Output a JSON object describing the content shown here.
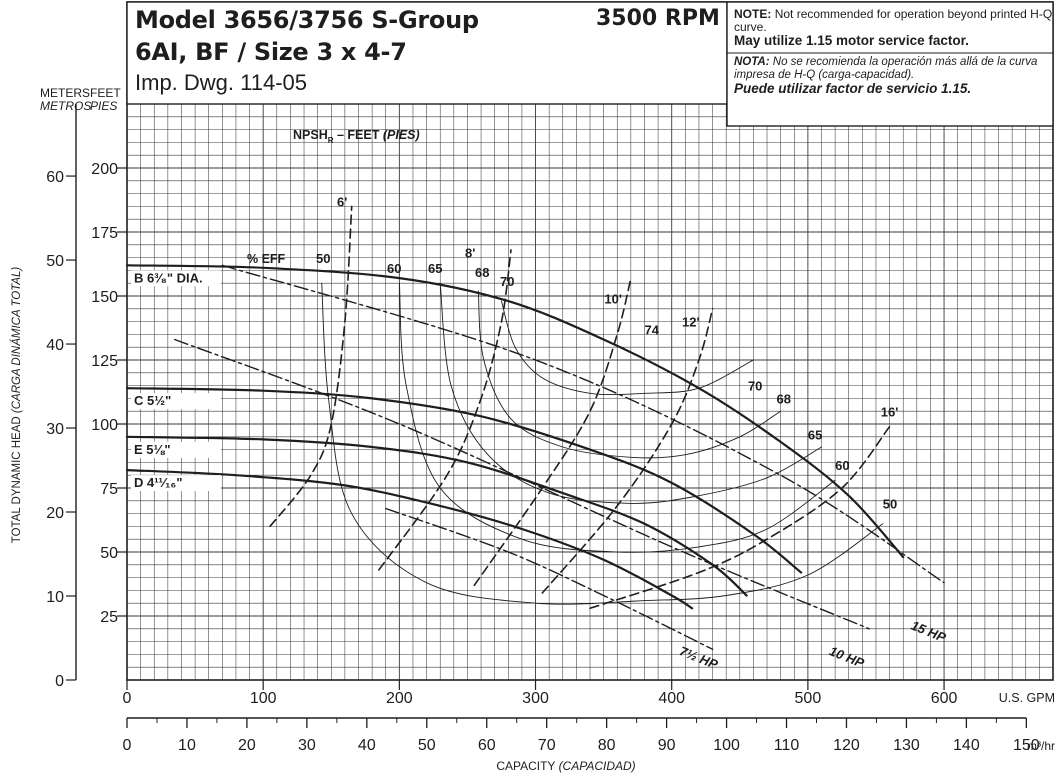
{
  "header": {
    "model": "Model 3656/3756 S-Group",
    "size": "6AI, BF / Size 3 x 4-7",
    "drawing": "Imp. Dwg. 114-05",
    "rpm": "3500 RPM"
  },
  "notes": {
    "en_label": "NOTE:",
    "en_text": "Not recommended for operation beyond printed H-Q curve.",
    "en_bold": "May utilize 1.15 motor service factor.",
    "es_label": "NOTA:",
    "es_text": "No se recomienda la operación más allá de la curva impresa de H-Q (carga-capacidad).",
    "es_bold": "Puede utilizar factor de servicio 1.15."
  },
  "chart_data": {
    "type": "line",
    "title": "NPSH",
    "npsh_label": {
      "main": "NPSH",
      "sub": "R",
      "rest": "– FEET",
      "italic": "(PIES)"
    },
    "y_left_label": "TOTAL DYNAMIC HEAD",
    "y_left_label_italic": "(CARGA DINÁMICA TOTAL)",
    "y_meters_header": "METERS",
    "y_meters_header_italic": "METROS",
    "y_feet_header": "FEET",
    "y_feet_header_italic": "PIES",
    "x_label": "CAPACITY",
    "x_label_italic": "(CAPACIDAD)",
    "x_gpm_unit": "U.S. GPM",
    "x_m3_unit": "m³/hr",
    "x_gpm_ticks": [
      0,
      100,
      200,
      300,
      400,
      500,
      600
    ],
    "x_m3_ticks": [
      0,
      10,
      20,
      30,
      40,
      50,
      60,
      70,
      80,
      90,
      100,
      110,
      120,
      130,
      140,
      150
    ],
    "y_feet_ticks": [
      25,
      50,
      75,
      100,
      125,
      150,
      175,
      200
    ],
    "y_meters_ticks": [
      0,
      10,
      20,
      30,
      40,
      50,
      60
    ],
    "xlim_gpm": [
      0,
      680
    ],
    "ylim_feet": [
      0,
      225
    ],
    "grid": true,
    "series": [
      {
        "kind": "impeller",
        "name": "B 6³⁄₈\" DIA.",
        "x": [
          0,
          100,
          200,
          280,
          350,
          420,
          480,
          530,
          570
        ],
        "y": [
          162,
          161,
          157,
          148,
          133,
          114,
          93,
          72,
          48
        ]
      },
      {
        "kind": "impeller",
        "name": "C 5½\"",
        "x": [
          0,
          100,
          180,
          260,
          340,
          400,
          460,
          495
        ],
        "y": [
          114,
          113,
          110,
          103,
          90,
          77,
          57,
          42
        ]
      },
      {
        "kind": "impeller",
        "name": "E 5⅛\"",
        "x": [
          0,
          100,
          180,
          250,
          320,
          380,
          430,
          455
        ],
        "y": [
          95,
          94,
          91,
          85,
          73,
          61,
          45,
          33
        ]
      },
      {
        "kind": "impeller",
        "name": "D 4¹¹⁄₁₆\"",
        "x": [
          0,
          80,
          160,
          230,
          290,
          350,
          400,
          415
        ],
        "y": [
          82,
          80,
          76,
          68,
          59,
          47,
          33,
          28
        ]
      },
      {
        "kind": "efficiency",
        "name": "50",
        "label_xy": [
          555,
          67
        ],
        "x": [
          143,
          148,
          165,
          220,
          300,
          380,
          440,
          500,
          555
        ],
        "y": [
          155,
          110,
          65,
          38,
          30,
          31,
          33,
          41,
          61
        ]
      },
      {
        "kind": "efficiency",
        "name": "60",
        "label_xy": [
          520,
          82
        ],
        "x": [
          200,
          205,
          230,
          290,
          360,
          420,
          470,
          520
        ],
        "y": [
          155,
          115,
          75,
          55,
          50,
          52,
          59,
          78
        ]
      },
      {
        "kind": "efficiency",
        "name": "65",
        "label_xy": [
          500,
          94
        ],
        "x": [
          230,
          238,
          265,
          310,
          370,
          420,
          470,
          510
        ],
        "y": [
          155,
          115,
          88,
          73,
          69,
          72,
          79,
          91
        ]
      },
      {
        "kind": "efficiency",
        "name": "68",
        "label_xy": [
          477,
          108
        ],
        "x": [
          258,
          262,
          282,
          320,
          370,
          410,
          450,
          480
        ],
        "y": [
          152,
          125,
          102,
          91,
          87,
          88,
          95,
          105
        ]
      },
      {
        "kind": "efficiency",
        "name": "70",
        "label_xy": [
          456,
          113
        ],
        "x": [
          275,
          285,
          305,
          340,
          380,
          420,
          460
        ],
        "y": [
          148,
          130,
          118,
          112,
          112,
          114,
          125
        ]
      },
      {
        "kind": "efficiency",
        "name": "74",
        "label_xy": [
          380,
          135
        ],
        "x": [],
        "y": []
      },
      {
        "kind": "npsh",
        "name": "6'",
        "label_xy": [
          158,
          185
        ],
        "x": [
          105,
          135,
          150,
          160,
          165
        ],
        "y": [
          60,
          80,
          100,
          140,
          185
        ]
      },
      {
        "kind": "npsh",
        "name": "8'",
        "label_xy": [
          252,
          165
        ],
        "x": [
          185,
          235,
          260,
          275,
          282
        ],
        "y": [
          43,
          80,
          110,
          140,
          168
        ]
      },
      {
        "kind": "npsh",
        "name": "10'",
        "label_xy": [
          357,
          147
        ],
        "x": [
          255,
          305,
          340,
          360,
          370
        ],
        "y": [
          37,
          75,
          105,
          135,
          157
        ]
      },
      {
        "kind": "npsh",
        "name": "12'",
        "label_xy": [
          414,
          138
        ],
        "x": [
          305,
          360,
          400,
          420,
          430
        ],
        "y": [
          34,
          68,
          100,
          125,
          145
        ]
      },
      {
        "kind": "npsh",
        "name": "16'",
        "label_xy": [
          560,
          103
        ],
        "x": [
          340,
          420,
          470,
          525,
          560
        ],
        "y": [
          28,
          42,
          55,
          75,
          99
        ]
      },
      {
        "kind": "horsepower",
        "name": "15 HP",
        "label_xy": [
          575,
          20
        ],
        "x": [
          70,
          300,
          480,
          600
        ],
        "y": [
          162,
          125,
          80,
          38
        ]
      },
      {
        "kind": "horsepower",
        "name": "10 HP",
        "label_xy": [
          515,
          10
        ],
        "x": [
          35,
          200,
          400,
          545
        ],
        "y": [
          133,
          100,
          52,
          20
        ]
      },
      {
        "kind": "horsepower",
        "name": "7½ HP",
        "label_xy": [
          405,
          10
        ],
        "x": [
          190,
          280,
          350,
          430
        ],
        "y": [
          67,
          50,
          33,
          12
        ]
      }
    ]
  },
  "colors": {
    "ink": "#1e1e1e",
    "grid": "#3a3a3a",
    "paper": "#ffffff"
  }
}
